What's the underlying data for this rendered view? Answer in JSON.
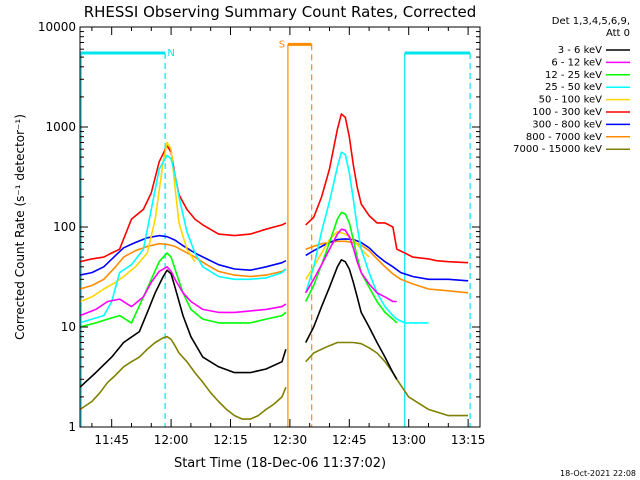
{
  "chart_data": {
    "type": "line",
    "title": "RHESSI Observing Summary Count Rates, Corrected",
    "xlabel": "Start Time (18-Dec-06 11:37:02)",
    "ylabel": "Corrected Count Rate (s⁻¹ detector⁻¹)",
    "yscale": "log",
    "ylim": [
      1,
      10000
    ],
    "xlim_minutes": [
      697,
      798
    ],
    "x_ticks": [
      {
        "label": "11:45",
        "minute": 705
      },
      {
        "label": "12:00",
        "minute": 720
      },
      {
        "label": "12:15",
        "minute": 735
      },
      {
        "label": "12:30",
        "minute": 750
      },
      {
        "label": "12:45",
        "minute": 765
      },
      {
        "label": "13:00",
        "minute": 780
      },
      {
        "label": "13:15",
        "minute": 795
      }
    ],
    "y_ticks": [
      {
        "label": "1",
        "value": 1
      },
      {
        "label": "10",
        "value": 10
      },
      {
        "label": "100",
        "value": 100
      },
      {
        "label": "1000",
        "value": 1000
      },
      {
        "label": "10000",
        "value": 10000
      }
    ],
    "legend_header": [
      "Det 1,3,4,5,6,9,",
      "Att 0"
    ],
    "legend_position": "right",
    "footer_date": "18-Oct-2021 22:08",
    "series": [
      {
        "name": "3 - 6 keV",
        "color": "#000000",
        "segments": [
          {
            "x": [
              697,
              701,
              705,
              708,
              712,
              714,
              716,
              718,
              719,
              720,
              721,
              723,
              725,
              728,
              732,
              736,
              740,
              744,
              748,
              749
            ],
            "y": [
              2.5,
              3.5,
              5,
              7,
              9,
              14,
              22,
              32,
              37,
              34,
              25,
              13,
              8,
              5,
              4,
              3.5,
              3.5,
              3.8,
              4.5,
              6
            ]
          },
          {
            "x": [
              754,
              756,
              758,
              760,
              762,
              763,
              764,
              765,
              766,
              767,
              768,
              770,
              772,
              774,
              776,
              777
            ],
            "y": [
              7,
              10,
              16,
              25,
              40,
              47,
              45,
              38,
              28,
              20,
              14,
              10,
              7,
              5,
              3.5,
              3
            ]
          }
        ]
      },
      {
        "name": "6 - 12 keV",
        "color": "#ff00ff",
        "segments": [
          {
            "x": [
              697,
              701,
              704,
              707,
              710,
              713,
              715,
              717,
              719,
              720,
              721,
              723,
              725,
              728,
              732,
              736,
              740,
              744,
              748,
              749
            ],
            "y": [
              13,
              15,
              18,
              19,
              16,
              20,
              28,
              36,
              40,
              36,
              30,
              22,
              18,
              15,
              14,
              14,
              14.5,
              15,
              16,
              17
            ]
          },
          {
            "x": [
              754,
              756,
              758,
              760,
              762,
              763,
              764,
              765,
              766,
              767,
              768,
              770,
              772,
              774,
              776,
              777
            ],
            "y": [
              22,
              30,
              42,
              60,
              85,
              95,
              93,
              80,
              62,
              45,
              35,
              27,
              22,
              20,
              18,
              18
            ]
          }
        ]
      },
      {
        "name": "12 - 25 keV",
        "color": "#00ff00",
        "segments": [
          {
            "x": [
              697,
              701,
              704,
              707,
              710,
              713,
              715,
              717,
              719,
              720,
              721,
              723,
              725,
              728,
              732,
              736,
              740,
              744,
              748,
              749
            ],
            "y": [
              10,
              11,
              12,
              13,
              11,
              20,
              30,
              45,
              55,
              50,
              38,
              22,
              15,
              12,
              11,
              11,
              11,
              12,
              13,
              14
            ]
          },
          {
            "x": [
              754,
              756,
              758,
              760,
              762,
              763,
              764,
              765,
              766,
              767,
              768,
              770,
              772,
              774,
              776,
              777
            ],
            "y": [
              18,
              26,
              42,
              70,
              120,
              140,
              135,
              110,
              75,
              50,
              35,
              25,
              18,
              14,
              12,
              11
            ]
          }
        ]
      },
      {
        "name": "25 - 50 keV",
        "color": "#00ffff",
        "segments": [
          {
            "x": [
              697,
              700,
              703,
              705,
              707,
              710,
              713,
              715,
              717,
              719,
              720,
              721,
              722,
              724,
              726,
              728,
              732,
              736,
              740,
              744,
              748,
              749
            ],
            "y": [
              11,
              12,
              13,
              18,
              35,
              42,
              60,
              150,
              380,
              520,
              480,
              330,
              200,
              90,
              55,
              40,
              32,
              30,
              30,
              31,
              35,
              38
            ]
          },
          {
            "x": [
              754,
              756,
              758,
              760,
              762,
              763,
              764,
              765,
              766,
              767,
              768,
              770,
              772,
              774,
              776,
              777,
              779,
              781,
              785
            ],
            "y": [
              22,
              40,
              90,
              180,
              400,
              560,
              530,
              350,
              190,
              100,
              60,
              35,
              22,
              16,
              13,
              12,
              11,
              11,
              11
            ]
          }
        ]
      },
      {
        "name": "50 - 100 keV",
        "color": "#ffd700",
        "segments": [
          {
            "x": [
              697,
              700,
              703,
              706,
              708,
              711,
              714,
              716,
              718,
              719,
              720,
              721,
              722,
              724,
              726
            ],
            "y": [
              18,
              20,
              24,
              28,
              32,
              40,
              55,
              120,
              450,
              700,
              600,
              250,
              110,
              60,
              45
            ]
          },
          {
            "x": [
              754,
              756,
              758,
              760,
              762,
              764,
              766,
              768,
              770
            ],
            "y": [
              30,
              40,
              55,
              75,
              90,
              85,
              75,
              60,
              50
            ]
          }
        ]
      },
      {
        "name": "100 - 300 keV",
        "color": "#ff0000",
        "segments": [
          {
            "x": [
              697,
              700,
              703,
              705,
              707,
              710,
              713,
              715,
              717,
              719,
              720,
              721,
              722,
              724,
              726,
              728,
              732,
              736,
              740,
              744,
              748,
              749
            ],
            "y": [
              45,
              48,
              50,
              55,
              60,
              120,
              150,
              220,
              450,
              650,
              560,
              330,
              210,
              150,
              120,
              105,
              85,
              82,
              85,
              95,
              105,
              110
            ]
          },
          {
            "x": [
              754,
              756,
              758,
              760,
              762,
              763,
              764,
              765,
              766,
              767,
              768,
              770,
              772,
              774,
              776,
              777,
              779,
              781,
              785,
              787,
              790,
              795
            ],
            "y": [
              105,
              125,
              200,
              380,
              950,
              1350,
              1250,
              800,
              420,
              250,
              170,
              130,
              110,
              110,
              100,
              60,
              55,
              50,
              48,
              46,
              45,
              44
            ]
          }
        ]
      },
      {
        "name": "300 - 800 keV",
        "color": "#0000ff",
        "segments": [
          {
            "x": [
              697,
              700,
              703,
              706,
              708,
              711,
              714,
              717,
              719,
              721,
              723,
              726,
              729,
              732,
              736,
              740,
              744,
              748,
              749
            ],
            "y": [
              33,
              35,
              40,
              52,
              62,
              70,
              78,
              82,
              80,
              74,
              65,
              55,
              48,
              42,
              38,
              37,
              40,
              44,
              46
            ]
          },
          {
            "x": [
              754,
              756,
              758,
              760,
              762,
              764,
              766,
              768,
              770,
              772,
              774,
              776,
              778,
              781,
              785,
              790,
              795
            ],
            "y": [
              52,
              58,
              64,
              70,
              75,
              76,
              75,
              70,
              62,
              52,
              45,
              40,
              35,
              32,
              30,
              30,
              29
            ]
          }
        ]
      },
      {
        "name": "800 - 7000 keV",
        "color": "#ff8c00",
        "segments": [
          {
            "x": [
              697,
              700,
              703,
              706,
              708,
              711,
              714,
              717,
              719,
              721,
              723,
              726,
              729,
              732,
              736,
              740,
              744,
              748,
              749
            ],
            "y": [
              24,
              26,
              30,
              40,
              50,
              58,
              64,
              68,
              67,
              64,
              58,
              50,
              42,
              36,
              33,
              32,
              33,
              36,
              38
            ]
          },
          {
            "x": [
              754,
              756,
              758,
              760,
              762,
              764,
              766,
              768,
              770,
              772,
              774,
              776,
              778,
              781,
              785,
              790,
              795
            ],
            "y": [
              60,
              64,
              68,
              70,
              72,
              72,
              70,
              66,
              58,
              48,
              40,
              34,
              30,
              27,
              24,
              23,
              22
            ]
          }
        ]
      },
      {
        "name": "7000 - 15000 keV",
        "color": "#808000",
        "segments": [
          {
            "x": [
              697,
              700,
              702,
              704,
              706,
              708,
              710,
              712,
              714,
              716,
              718,
              719,
              720,
              721,
              722,
              724,
              726,
              728,
              730,
              732,
              734,
              736,
              738,
              740,
              742,
              744,
              746,
              748,
              749
            ],
            "y": [
              1.5,
              1.8,
              2.2,
              2.8,
              3.3,
              4,
              4.5,
              5,
              6,
              7,
              7.8,
              8,
              7.5,
              6.5,
              5.5,
              4.5,
              3.5,
              2.8,
              2.2,
              1.8,
              1.5,
              1.3,
              1.2,
              1.2,
              1.3,
              1.5,
              1.7,
              2,
              2.5
            ]
          },
          {
            "x": [
              754,
              756,
              758,
              760,
              762,
              764,
              766,
              768,
              770,
              772,
              774,
              776,
              777,
              780,
              785,
              790,
              795
            ],
            "y": [
              4.5,
              5.5,
              6,
              6.5,
              7,
              7,
              7,
              6.8,
              6.2,
              5.5,
              4.5,
              3.5,
              3,
              2,
              1.5,
              1.3,
              1.3
            ]
          }
        ]
      }
    ],
    "annotations": [
      {
        "label": "N",
        "color": "#00e5ee",
        "kind": "night",
        "bars": [
          [
            697,
            718.5
          ],
          [
            779,
            795.5
          ]
        ],
        "bar_value": 5500,
        "edges": [
          718.5,
          779,
          795.5
        ],
        "label_minute": 720
      },
      {
        "label": "S",
        "color": "#ff8c00",
        "kind": "saa",
        "bars": [
          [
            749.5,
            755.5
          ]
        ],
        "bar_value": 6700,
        "edges": [
          749.5,
          755.5
        ],
        "label_minute": 748
      }
    ],
    "data_gap_minutes": [
      750,
      754
    ]
  }
}
